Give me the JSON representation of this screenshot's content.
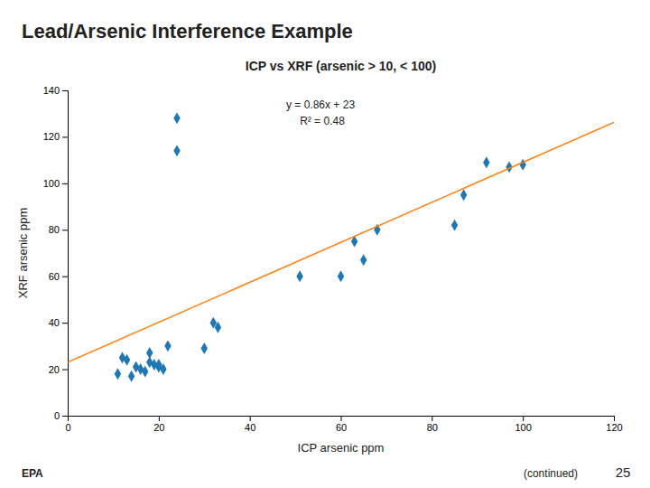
{
  "chart_data": {
    "type": "scatter",
    "title": "Lead/Arsenic Interference Example",
    "subtitle": "ICP vs XRF (arsenic > 10, < 100)",
    "xlabel": "ICP arsenic ppm",
    "ylabel": "XRF arsenic ppm",
    "xlim": [
      0,
      120
    ],
    "ylim": [
      0,
      140
    ],
    "xticks": [
      0,
      20,
      40,
      60,
      80,
      100,
      120
    ],
    "yticks": [
      0,
      20,
      40,
      60,
      80,
      100,
      120,
      140
    ],
    "grid": false,
    "series": [
      {
        "type": "scatter",
        "marker": "diamond",
        "x": [
          11,
          12,
          13,
          14,
          15,
          16,
          17,
          18,
          18,
          19,
          20,
          20,
          21,
          22,
          24,
          24,
          30,
          32,
          33,
          51,
          60,
          63,
          65,
          68,
          85,
          87,
          92,
          97,
          100
        ],
        "values": [
          18,
          25,
          24,
          17,
          21,
          20,
          19,
          23,
          27,
          22,
          21,
          22,
          20,
          30,
          128,
          114,
          29,
          40,
          38,
          60,
          60,
          75,
          67,
          80,
          82,
          95,
          109,
          107,
          108
        ]
      },
      {
        "type": "line",
        "line_style": "solid",
        "x": [
          0,
          120
        ],
        "values": [
          23,
          126.2
        ]
      }
    ],
    "annotations": [
      "y = 0.86x + 23",
      "R² = 0.48",
      "(continued)",
      "25",
      "EPA"
    ]
  }
}
